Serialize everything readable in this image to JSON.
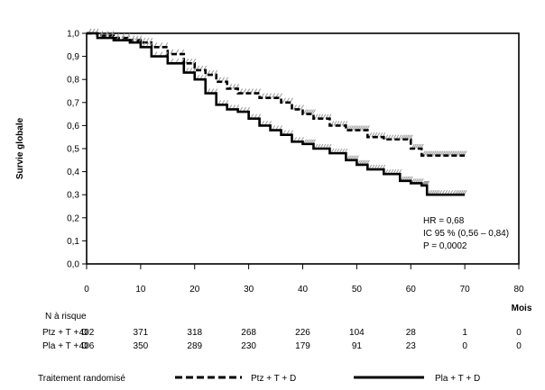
{
  "chart_data": {
    "type": "line",
    "ylabel": "Survie globale",
    "xlabel": "Mois",
    "xlim": [
      0,
      80
    ],
    "ylim": [
      0,
      1
    ],
    "x_ticks": [
      "0",
      "10",
      "20",
      "30",
      "40",
      "50",
      "60",
      "70",
      "80"
    ],
    "y_ticks": [
      "0,0",
      "0,1",
      "0,2",
      "0,3",
      "0,4",
      "0,5",
      "0,6",
      "0,7",
      "0,8",
      "0,9",
      "1,0"
    ],
    "grid": false,
    "annotation": [
      "HR = 0,68",
      "IC 95 % (0,56 – 0,84)",
      "P = 0,0002"
    ],
    "series": [
      {
        "name": "Ptz + T + D",
        "style": "dashed",
        "color": "#000000",
        "censor_color": "#9a9a9a",
        "x": [
          0,
          2,
          5,
          8,
          10,
          12,
          15,
          18,
          20,
          22,
          24,
          26,
          28,
          30,
          32,
          34,
          36,
          38,
          40,
          42,
          45,
          48,
          50,
          52,
          55,
          58,
          60,
          62,
          64,
          66,
          68,
          70
        ],
        "y": [
          1.0,
          0.99,
          0.98,
          0.97,
          0.96,
          0.94,
          0.91,
          0.87,
          0.84,
          0.82,
          0.79,
          0.76,
          0.74,
          0.74,
          0.72,
          0.72,
          0.7,
          0.67,
          0.65,
          0.63,
          0.6,
          0.58,
          0.58,
          0.55,
          0.54,
          0.54,
          0.5,
          0.47,
          0.47,
          0.47,
          0.47,
          0.47
        ]
      },
      {
        "name": "Pla + T + D",
        "style": "solid",
        "color": "#000000",
        "censor_color": "#9a9a9a",
        "x": [
          0,
          2,
          5,
          8,
          10,
          12,
          15,
          18,
          20,
          22,
          24,
          26,
          28,
          30,
          32,
          34,
          36,
          38,
          40,
          42,
          45,
          48,
          50,
          52,
          55,
          58,
          60,
          62,
          63,
          65,
          68,
          70
        ],
        "y": [
          1.0,
          0.98,
          0.97,
          0.96,
          0.94,
          0.9,
          0.87,
          0.83,
          0.8,
          0.74,
          0.69,
          0.67,
          0.66,
          0.63,
          0.6,
          0.58,
          0.56,
          0.53,
          0.52,
          0.5,
          0.48,
          0.45,
          0.43,
          0.41,
          0.39,
          0.36,
          0.35,
          0.34,
          0.3,
          0.3,
          0.3,
          0.3
        ]
      }
    ],
    "risk_table": {
      "title": "N à risque",
      "times": [
        "0",
        "10",
        "20",
        "30",
        "40",
        "50",
        "60",
        "70",
        "80"
      ],
      "rows": [
        {
          "label": "Ptz + T + D",
          "values": [
            "402",
            "371",
            "318",
            "268",
            "226",
            "104",
            "28",
            "1",
            "0"
          ]
        },
        {
          "label": "Pla + T + D",
          "values": [
            "406",
            "350",
            "289",
            "230",
            "179",
            "91",
            "23",
            "0",
            "0"
          ]
        }
      ]
    },
    "legend": {
      "title": "Traitement randomisé",
      "position": "bottom",
      "items": [
        "Ptz + T + D",
        "Pla + T + D"
      ]
    }
  }
}
